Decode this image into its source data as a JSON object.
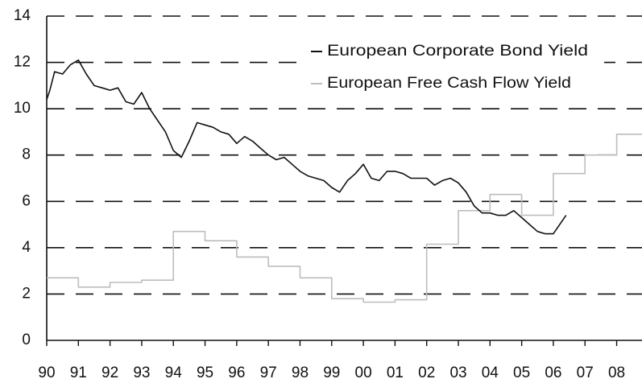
{
  "chart_data": {
    "type": "line",
    "xlim": [
      1990,
      2008.8
    ],
    "ylim": [
      0,
      14
    ],
    "yticks": [
      0,
      2,
      4,
      6,
      8,
      10,
      12,
      14
    ],
    "xticks": [
      {
        "value": 1990,
        "label": "90"
      },
      {
        "value": 1991,
        "label": "91"
      },
      {
        "value": 1992,
        "label": "92"
      },
      {
        "value": 1993,
        "label": "93"
      },
      {
        "value": 1994,
        "label": "94"
      },
      {
        "value": 1995,
        "label": "95"
      },
      {
        "value": 1996,
        "label": "96"
      },
      {
        "value": 1997,
        "label": "97"
      },
      {
        "value": 1998,
        "label": "98"
      },
      {
        "value": 1999,
        "label": "99"
      },
      {
        "value": 2000,
        "label": "00"
      },
      {
        "value": 2001,
        "label": "01"
      },
      {
        "value": 2002,
        "label": "02"
      },
      {
        "value": 2003,
        "label": "03"
      },
      {
        "value": 2004,
        "label": "04"
      },
      {
        "value": 2005,
        "label": "05"
      },
      {
        "value": 2006,
        "label": "06"
      },
      {
        "value": 2007,
        "label": "07"
      },
      {
        "value": 2008,
        "label": "08"
      }
    ],
    "grid": true,
    "legend": "upper right",
    "series": [
      {
        "name": "European Corporate Bond Yield",
        "color": "#111111",
        "x": [
          1990.0,
          1990.1,
          1990.25,
          1990.5,
          1990.75,
          1991.0,
          1991.25,
          1991.5,
          1991.75,
          1992.0,
          1992.25,
          1992.5,
          1992.75,
          1993.0,
          1993.25,
          1993.5,
          1993.75,
          1994.0,
          1994.25,
          1994.5,
          1994.75,
          1995.0,
          1995.25,
          1995.5,
          1995.75,
          1996.0,
          1996.25,
          1996.5,
          1996.75,
          1997.0,
          1997.25,
          1997.5,
          1997.75,
          1998.0,
          1998.25,
          1998.5,
          1998.75,
          1999.0,
          1999.25,
          1999.5,
          1999.75,
          2000.0,
          2000.25,
          2000.5,
          2000.75,
          2001.0,
          2001.25,
          2001.5,
          2001.75,
          2002.0,
          2002.25,
          2002.5,
          2002.75,
          2003.0,
          2003.25,
          2003.5,
          2003.75,
          2004.0,
          2004.25,
          2004.5,
          2004.75,
          2005.0,
          2005.25,
          2005.5,
          2005.75,
          2006.0,
          2006.25,
          2006.4
        ],
        "values": [
          10.4,
          10.8,
          11.6,
          11.5,
          11.9,
          12.1,
          11.5,
          11.0,
          10.9,
          10.8,
          10.9,
          10.3,
          10.2,
          10.7,
          10.0,
          9.5,
          9.0,
          8.2,
          7.9,
          8.6,
          9.4,
          9.3,
          9.2,
          9.0,
          8.9,
          8.5,
          8.8,
          8.6,
          8.3,
          8.0,
          7.8,
          7.9,
          7.6,
          7.3,
          7.1,
          7.0,
          6.9,
          6.6,
          6.4,
          6.9,
          7.2,
          7.6,
          7.0,
          6.9,
          7.3,
          7.3,
          7.2,
          7.0,
          7.0,
          7.0,
          6.7,
          6.9,
          7.0,
          6.8,
          6.4,
          5.8,
          5.5,
          5.5,
          5.4,
          5.4,
          5.6,
          5.3,
          5.0,
          4.7,
          4.6,
          4.6,
          5.1,
          5.4
        ]
      },
      {
        "name": "European Free Cash Flow Yield",
        "color": "#bdbdbd",
        "x": [
          1990,
          1991,
          1991,
          1992,
          1992,
          1993,
          1993,
          1994,
          1994,
          1995,
          1995,
          1996,
          1996,
          1997,
          1997,
          1998,
          1998,
          1999,
          1999,
          2000,
          2000,
          2001,
          2001,
          2002,
          2002,
          2003,
          2003,
          2004,
          2004,
          2005,
          2005,
          2006,
          2006,
          2007,
          2007,
          2008,
          2008,
          2008.8
        ],
        "values": [
          2.7,
          2.7,
          2.3,
          2.3,
          2.5,
          2.5,
          2.6,
          2.6,
          4.7,
          4.7,
          4.3,
          4.3,
          3.6,
          3.6,
          3.2,
          3.2,
          2.7,
          2.7,
          1.8,
          1.8,
          1.65,
          1.65,
          1.75,
          1.75,
          4.15,
          4.15,
          5.6,
          5.6,
          6.3,
          6.3,
          5.4,
          5.4,
          7.2,
          7.2,
          8.0,
          8.0,
          8.9,
          8.9
        ]
      }
    ]
  }
}
